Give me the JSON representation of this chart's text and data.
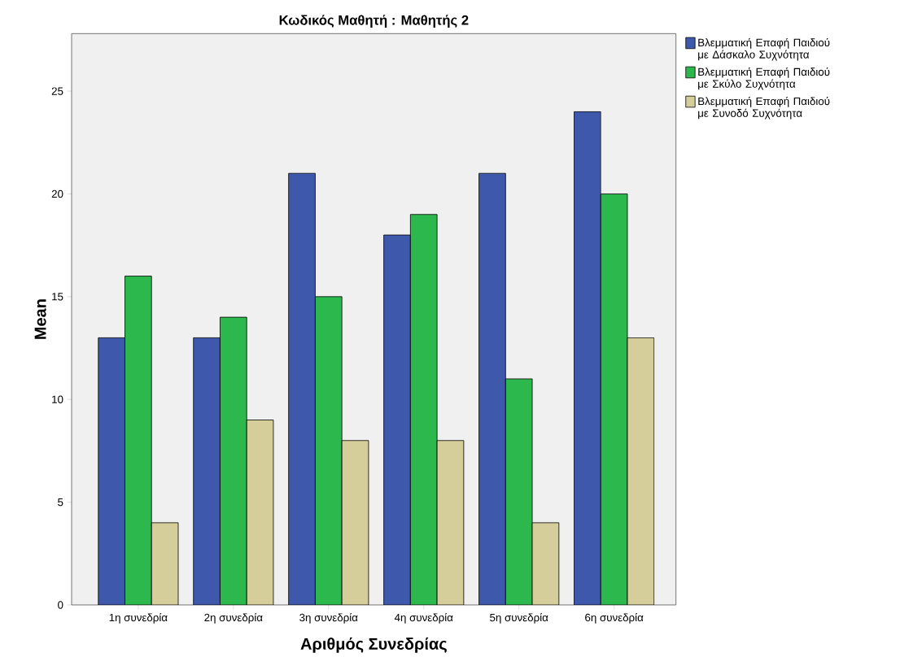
{
  "chart_data": {
    "type": "bar",
    "title": "Κωδικός Μαθητή : Μαθητής 2",
    "xlabel": "Αριθμός Συνεδρίας",
    "ylabel": "Mean",
    "categories": [
      "1η συνεδρία",
      "2η συνεδρία",
      "3η συνεδρία",
      "4η συνεδρία",
      "5η συνεδρία",
      "6η συνεδρία"
    ],
    "series": [
      {
        "name": "Βλεμματική Επαφή Παιδιού με Δάσκαλο Συχνότητα",
        "color": "#3e58ac",
        "values": [
          13,
          13,
          21,
          18,
          21,
          24
        ]
      },
      {
        "name": "Βλεμματική Επαφή Παιδιού με Σκύλο Συχνότητα",
        "color": "#2db84d",
        "values": [
          16,
          14,
          15,
          19,
          11,
          20
        ]
      },
      {
        "name": "Βλεμματική Επαφή Παιδιού με Συνοδό Συχνότητα",
        "color": "#d5ce9a",
        "values": [
          4,
          9,
          8,
          8,
          4,
          13
        ]
      }
    ],
    "ylim": [
      0,
      27.8
    ],
    "yticks": [
      0,
      5,
      10,
      15,
      20,
      25
    ],
    "grid": false,
    "legend": "right"
  }
}
